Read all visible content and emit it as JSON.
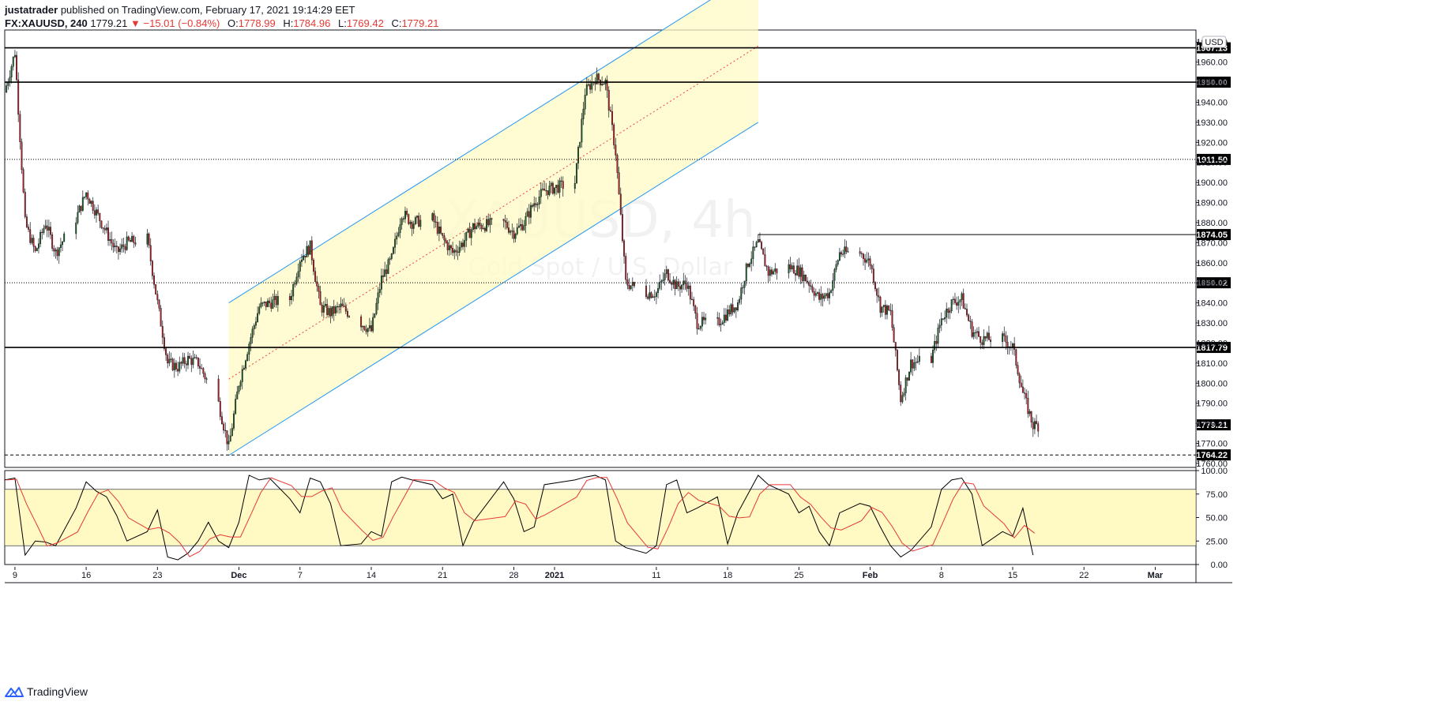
{
  "header": {
    "author": "justatrader",
    "published_text": "published on TradingView.com, February 17, 2021 19:14:29 EET",
    "symbol": "FX:XAUUSD, 240",
    "last": "1779.21",
    "arrow": "▼",
    "change": "−15.01 (−0.84%)",
    "open_label": "O:",
    "open": "1778.99",
    "high_label": "H:",
    "high": "1784.96",
    "low_label": "L:",
    "low": "1769.42",
    "close_label": "C:",
    "close": "1779.21"
  },
  "footer": {
    "brand": "TradingView"
  },
  "currency_badge": "USD",
  "watermark": {
    "symbol": "XAUUSD, 4h",
    "subtitle": "Gold Spot / U.S. Dollar"
  },
  "colors": {
    "up_candle": "#1b5e20",
    "down_candle": "#b71c1c",
    "channel_line": "#2196f3",
    "channel_fill": "#fff9c4",
    "midline": "#f44336",
    "level_line": "#000000",
    "stoch_k": "#000000",
    "stoch_d": "#e53935",
    "stoch_band": "#fff59d"
  },
  "chart_data": {
    "type": "candlestick",
    "timeframe": "240",
    "symbol": "FX:XAUUSD",
    "price_axis": {
      "ylim": [
        1758,
        1976
      ],
      "ticks": [
        1760.0,
        1770.0,
        1780.0,
        1790.0,
        1800.0,
        1810.0,
        1820.0,
        1830.0,
        1840.0,
        1850.0,
        1860.0,
        1870.0,
        1880.0,
        1890.0,
        1900.0,
        1910.0,
        1920.0,
        1930.0,
        1940.0,
        1950.0,
        1960.0,
        1970.0
      ]
    },
    "x_axis": {
      "start_date": "2020-11-08",
      "end_date": "2021-03-05",
      "ticks": [
        {
          "label": "9",
          "date": "2020-11-09"
        },
        {
          "label": "16",
          "date": "2020-11-16"
        },
        {
          "label": "23",
          "date": "2020-11-23"
        },
        {
          "label": "Dec",
          "date": "2020-12-01"
        },
        {
          "label": "7",
          "date": "2020-12-07"
        },
        {
          "label": "14",
          "date": "2020-12-14"
        },
        {
          "label": "21",
          "date": "2020-12-21"
        },
        {
          "label": "28",
          "date": "2020-12-28"
        },
        {
          "label": "2021",
          "date": "2021-01-01"
        },
        {
          "label": "11",
          "date": "2021-01-11"
        },
        {
          "label": "18",
          "date": "2021-01-18"
        },
        {
          "label": "25",
          "date": "2021-01-25"
        },
        {
          "label": "Feb",
          "date": "2021-02-01"
        },
        {
          "label": "8",
          "date": "2021-02-08"
        },
        {
          "label": "15",
          "date": "2021-02-15"
        },
        {
          "label": "22",
          "date": "2021-02-22"
        },
        {
          "label": "Mar",
          "date": "2021-03-01"
        }
      ]
    },
    "price_path": [
      {
        "date": "2020-11-08",
        "price": 1945
      },
      {
        "date": "2020-11-09",
        "price": 1965
      },
      {
        "date": "2020-11-10",
        "price": 1880
      },
      {
        "date": "2020-11-11",
        "price": 1865
      },
      {
        "date": "2020-11-12",
        "price": 1880
      },
      {
        "date": "2020-11-13",
        "price": 1865
      },
      {
        "date": "2020-11-15",
        "price": 1882
      },
      {
        "date": "2020-11-16",
        "price": 1895
      },
      {
        "date": "2020-11-17",
        "price": 1885
      },
      {
        "date": "2020-11-18",
        "price": 1875
      },
      {
        "date": "2020-11-19",
        "price": 1865
      },
      {
        "date": "2020-11-20",
        "price": 1870
      },
      {
        "date": "2020-11-22",
        "price": 1872
      },
      {
        "date": "2020-11-23",
        "price": 1840
      },
      {
        "date": "2020-11-24",
        "price": 1810
      },
      {
        "date": "2020-11-25",
        "price": 1808
      },
      {
        "date": "2020-11-26",
        "price": 1812
      },
      {
        "date": "2020-11-27",
        "price": 1810
      },
      {
        "date": "2020-11-29",
        "price": 1790
      },
      {
        "date": "2020-11-30",
        "price": 1768
      },
      {
        "date": "2020-12-01",
        "price": 1800
      },
      {
        "date": "2020-12-02",
        "price": 1820
      },
      {
        "date": "2020-12-03",
        "price": 1838
      },
      {
        "date": "2020-12-04",
        "price": 1840
      },
      {
        "date": "2020-12-06",
        "price": 1842
      },
      {
        "date": "2020-12-07",
        "price": 1862
      },
      {
        "date": "2020-12-08",
        "price": 1868
      },
      {
        "date": "2020-12-09",
        "price": 1838
      },
      {
        "date": "2020-12-10",
        "price": 1835
      },
      {
        "date": "2020-12-11",
        "price": 1838
      },
      {
        "date": "2020-12-13",
        "price": 1830
      },
      {
        "date": "2020-12-14",
        "price": 1826
      },
      {
        "date": "2020-12-15",
        "price": 1852
      },
      {
        "date": "2020-12-16",
        "price": 1862
      },
      {
        "date": "2020-12-17",
        "price": 1885
      },
      {
        "date": "2020-12-18",
        "price": 1880
      },
      {
        "date": "2020-12-20",
        "price": 1882
      },
      {
        "date": "2020-12-21",
        "price": 1872
      },
      {
        "date": "2020-12-22",
        "price": 1865
      },
      {
        "date": "2020-12-23",
        "price": 1870
      },
      {
        "date": "2020-12-24",
        "price": 1878
      },
      {
        "date": "2020-12-27",
        "price": 1880
      },
      {
        "date": "2020-12-28",
        "price": 1875
      },
      {
        "date": "2020-12-29",
        "price": 1880
      },
      {
        "date": "2020-12-30",
        "price": 1890
      },
      {
        "date": "2020-12-31",
        "price": 1896
      },
      {
        "date": "2021-01-03",
        "price": 1900
      },
      {
        "date": "2021-01-04",
        "price": 1945
      },
      {
        "date": "2021-01-05",
        "price": 1952
      },
      {
        "date": "2021-01-06",
        "price": 1950
      },
      {
        "date": "2021-01-07",
        "price": 1915
      },
      {
        "date": "2021-01-08",
        "price": 1850
      },
      {
        "date": "2021-01-10",
        "price": 1845
      },
      {
        "date": "2021-01-11",
        "price": 1845
      },
      {
        "date": "2021-01-12",
        "price": 1855
      },
      {
        "date": "2021-01-13",
        "price": 1848
      },
      {
        "date": "2021-01-14",
        "price": 1850
      },
      {
        "date": "2021-01-15",
        "price": 1830
      },
      {
        "date": "2021-01-17",
        "price": 1830
      },
      {
        "date": "2021-01-18",
        "price": 1835
      },
      {
        "date": "2021-01-19",
        "price": 1840
      },
      {
        "date": "2021-01-20",
        "price": 1860
      },
      {
        "date": "2021-01-21",
        "price": 1870
      },
      {
        "date": "2021-01-22",
        "price": 1855
      },
      {
        "date": "2021-01-24",
        "price": 1858
      },
      {
        "date": "2021-01-25",
        "price": 1856
      },
      {
        "date": "2021-01-26",
        "price": 1850
      },
      {
        "date": "2021-01-27",
        "price": 1842
      },
      {
        "date": "2021-01-28",
        "price": 1845
      },
      {
        "date": "2021-01-29",
        "price": 1865
      },
      {
        "date": "2021-01-31",
        "price": 1865
      },
      {
        "date": "2021-02-01",
        "price": 1860
      },
      {
        "date": "2021-02-02",
        "price": 1838
      },
      {
        "date": "2021-02-03",
        "price": 1835
      },
      {
        "date": "2021-02-04",
        "price": 1792
      },
      {
        "date": "2021-02-05",
        "price": 1810
      },
      {
        "date": "2021-02-07",
        "price": 1812
      },
      {
        "date": "2021-02-08",
        "price": 1832
      },
      {
        "date": "2021-02-09",
        "price": 1840
      },
      {
        "date": "2021-02-10",
        "price": 1842
      },
      {
        "date": "2021-02-11",
        "price": 1826
      },
      {
        "date": "2021-02-12",
        "price": 1822
      },
      {
        "date": "2021-02-14",
        "price": 1822
      },
      {
        "date": "2021-02-15",
        "price": 1818
      },
      {
        "date": "2021-02-16",
        "price": 1795
      },
      {
        "date": "2021-02-17",
        "price": 1779
      }
    ],
    "horizontal_levels": [
      {
        "value": 1967.13,
        "label": "1967.13",
        "style": "solid"
      },
      {
        "value": 1950.0,
        "label": "1950.00",
        "style": "solid"
      },
      {
        "value": 1911.5,
        "label": "1911.50",
        "style": "dotted"
      },
      {
        "value": 1850.02,
        "label": "1850.02",
        "style": "dotted"
      },
      {
        "value": 1817.79,
        "label": "1817.79",
        "style": "solid"
      },
      {
        "value": 1764.22,
        "label": "1764.22",
        "style": "dashed"
      }
    ],
    "current_price": {
      "value": 1779.21,
      "label": "1779.21"
    },
    "resistance_segment": {
      "value": 1874.05,
      "label": "1874.05",
      "from": "2021-01-21"
    },
    "channel": {
      "from": "2020-11-30",
      "to": "2021-01-21",
      "upper_start": 1840,
      "upper_end": 2006,
      "lower_start": 1764,
      "lower_end": 1930
    },
    "stochastic": {
      "ylim": [
        0,
        100
      ],
      "ticks": [
        0.0,
        25.0,
        50.0,
        75.0,
        100.0
      ],
      "band": [
        20,
        80
      ],
      "k": [
        {
          "date": "2020-11-08",
          "v": 90
        },
        {
          "date": "2020-11-09",
          "v": 92
        },
        {
          "date": "2020-11-10",
          "v": 10
        },
        {
          "date": "2020-11-11",
          "v": 25
        },
        {
          "date": "2020-11-12",
          "v": 24
        },
        {
          "date": "2020-11-13",
          "v": 20
        },
        {
          "date": "2020-11-15",
          "v": 60
        },
        {
          "date": "2020-11-16",
          "v": 88
        },
        {
          "date": "2020-11-17",
          "v": 78
        },
        {
          "date": "2020-11-18",
          "v": 72
        },
        {
          "date": "2020-11-19",
          "v": 52
        },
        {
          "date": "2020-11-20",
          "v": 25
        },
        {
          "date": "2020-11-22",
          "v": 35
        },
        {
          "date": "2020-11-23",
          "v": 58
        },
        {
          "date": "2020-11-24",
          "v": 8
        },
        {
          "date": "2020-11-25",
          "v": 5
        },
        {
          "date": "2020-11-26",
          "v": 12
        },
        {
          "date": "2020-11-27",
          "v": 25
        },
        {
          "date": "2020-11-28",
          "v": 45
        },
        {
          "date": "2020-11-29",
          "v": 25
        },
        {
          "date": "2020-11-30",
          "v": 18
        },
        {
          "date": "2020-12-01",
          "v": 45
        },
        {
          "date": "2020-12-02",
          "v": 95
        },
        {
          "date": "2020-12-03",
          "v": 90
        },
        {
          "date": "2020-12-04",
          "v": 92
        },
        {
          "date": "2020-12-06",
          "v": 70
        },
        {
          "date": "2020-12-07",
          "v": 55
        },
        {
          "date": "2020-12-08",
          "v": 92
        },
        {
          "date": "2020-12-09",
          "v": 88
        },
        {
          "date": "2020-12-10",
          "v": 65
        },
        {
          "date": "2020-12-11",
          "v": 20
        },
        {
          "date": "2020-12-13",
          "v": 22
        },
        {
          "date": "2020-12-14",
          "v": 35
        },
        {
          "date": "2020-12-15",
          "v": 30
        },
        {
          "date": "2020-12-16",
          "v": 88
        },
        {
          "date": "2020-12-17",
          "v": 93
        },
        {
          "date": "2020-12-18",
          "v": 90
        },
        {
          "date": "2020-12-20",
          "v": 85
        },
        {
          "date": "2020-12-21",
          "v": 70
        },
        {
          "date": "2020-12-22",
          "v": 75
        },
        {
          "date": "2020-12-23",
          "v": 20
        },
        {
          "date": "2020-12-24",
          "v": 45
        },
        {
          "date": "2020-12-27",
          "v": 88
        },
        {
          "date": "2020-12-28",
          "v": 70
        },
        {
          "date": "2020-12-29",
          "v": 35
        },
        {
          "date": "2020-12-30",
          "v": 40
        },
        {
          "date": "2020-12-31",
          "v": 85
        },
        {
          "date": "2021-01-03",
          "v": 90
        },
        {
          "date": "2021-01-04",
          "v": 93
        },
        {
          "date": "2021-01-05",
          "v": 95
        },
        {
          "date": "2021-01-06",
          "v": 90
        },
        {
          "date": "2021-01-07",
          "v": 25
        },
        {
          "date": "2021-01-08",
          "v": 18
        },
        {
          "date": "2021-01-10",
          "v": 12
        },
        {
          "date": "2021-01-11",
          "v": 20
        },
        {
          "date": "2021-01-12",
          "v": 85
        },
        {
          "date": "2021-01-13",
          "v": 90
        },
        {
          "date": "2021-01-14",
          "v": 55
        },
        {
          "date": "2021-01-15",
          "v": 60
        },
        {
          "date": "2021-01-17",
          "v": 72
        },
        {
          "date": "2021-01-18",
          "v": 22
        },
        {
          "date": "2021-01-19",
          "v": 55
        },
        {
          "date": "2021-01-20",
          "v": 75
        },
        {
          "date": "2021-01-21",
          "v": 95
        },
        {
          "date": "2021-01-22",
          "v": 85
        },
        {
          "date": "2021-01-24",
          "v": 75
        },
        {
          "date": "2021-01-25",
          "v": 55
        },
        {
          "date": "2021-01-26",
          "v": 62
        },
        {
          "date": "2021-01-27",
          "v": 35
        },
        {
          "date": "2021-01-28",
          "v": 20
        },
        {
          "date": "2021-01-29",
          "v": 55
        },
        {
          "date": "2021-01-31",
          "v": 65
        },
        {
          "date": "2021-02-01",
          "v": 62
        },
        {
          "date": "2021-02-02",
          "v": 40
        },
        {
          "date": "2021-02-03",
          "v": 20
        },
        {
          "date": "2021-02-04",
          "v": 8
        },
        {
          "date": "2021-02-05",
          "v": 15
        },
        {
          "date": "2021-02-07",
          "v": 40
        },
        {
          "date": "2021-02-08",
          "v": 80
        },
        {
          "date": "2021-02-09",
          "v": 90
        },
        {
          "date": "2021-02-10",
          "v": 92
        },
        {
          "date": "2021-02-11",
          "v": 75
        },
        {
          "date": "2021-02-12",
          "v": 20
        },
        {
          "date": "2021-02-14",
          "v": 35
        },
        {
          "date": "2021-02-15",
          "v": 30
        },
        {
          "date": "2021-02-16",
          "v": 60
        },
        {
          "date": "2021-02-17",
          "v": 10
        }
      ]
    },
    "grid": false,
    "legend": "none"
  }
}
